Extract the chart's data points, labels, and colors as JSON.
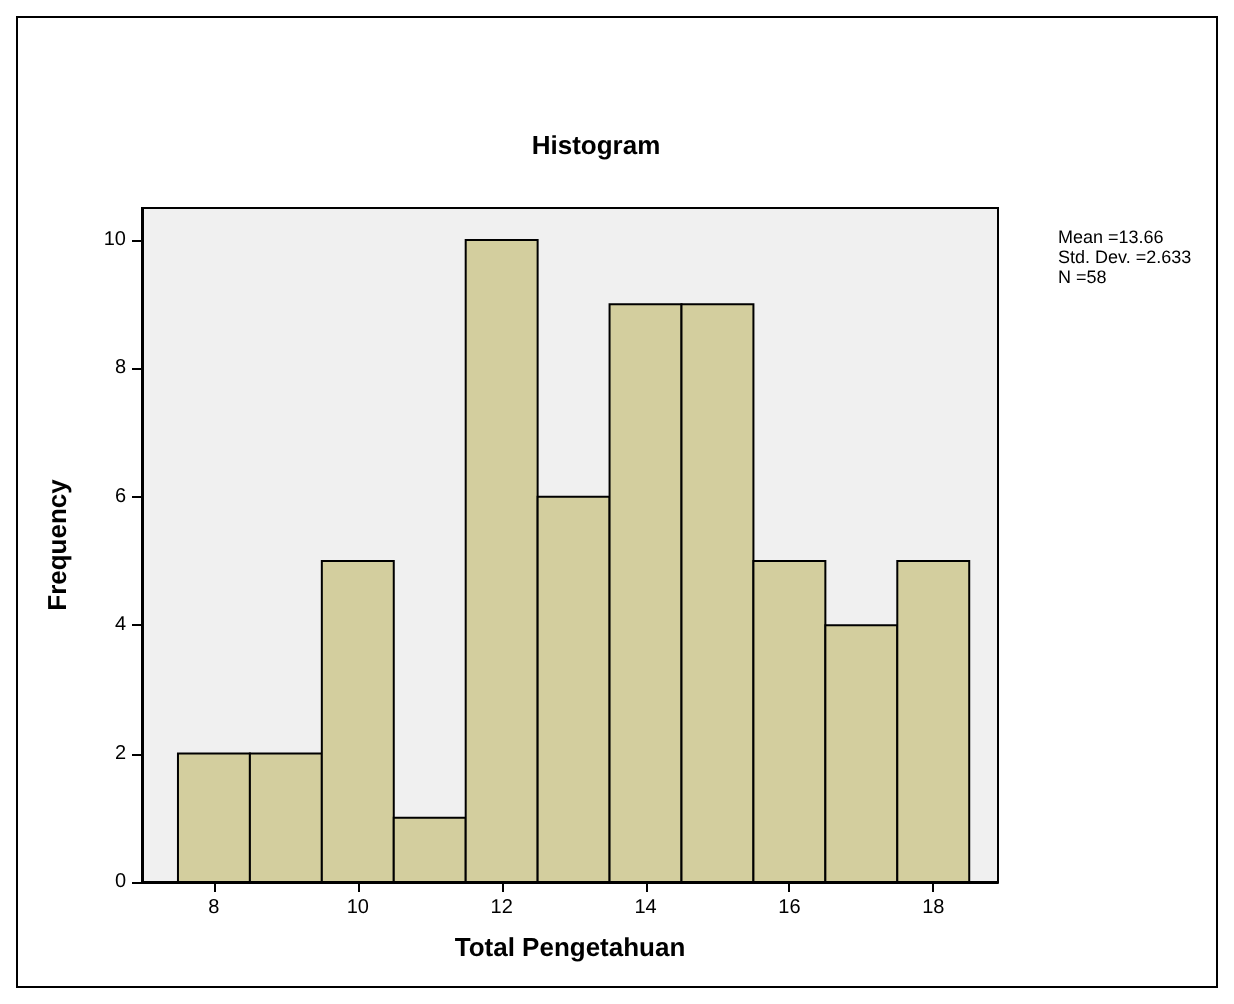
{
  "chart_data": {
    "type": "histogram",
    "title": "Histogram",
    "xlabel": "Total Pengetahuan",
    "ylabel": "Frequency",
    "bins": [
      7.5,
      8.5,
      9.5,
      10.5,
      11.5,
      12.5,
      13.5,
      14.5,
      15.5,
      16.5,
      17.5,
      18.5
    ],
    "values": [
      2,
      2,
      5,
      1,
      10,
      6,
      9,
      9,
      5,
      4,
      5
    ],
    "color": "#d3ce9e",
    "xlim": [
      7,
      18.9
    ],
    "xticks": [
      8,
      10,
      12,
      14,
      16,
      18
    ],
    "ylim": [
      0,
      10.5
    ],
    "yticks": [
      0,
      2,
      4,
      6,
      8,
      10
    ],
    "grid": false,
    "annotations": [
      "Mean =13.66",
      "Std. Dev. =2.633",
      "N =58"
    ]
  }
}
